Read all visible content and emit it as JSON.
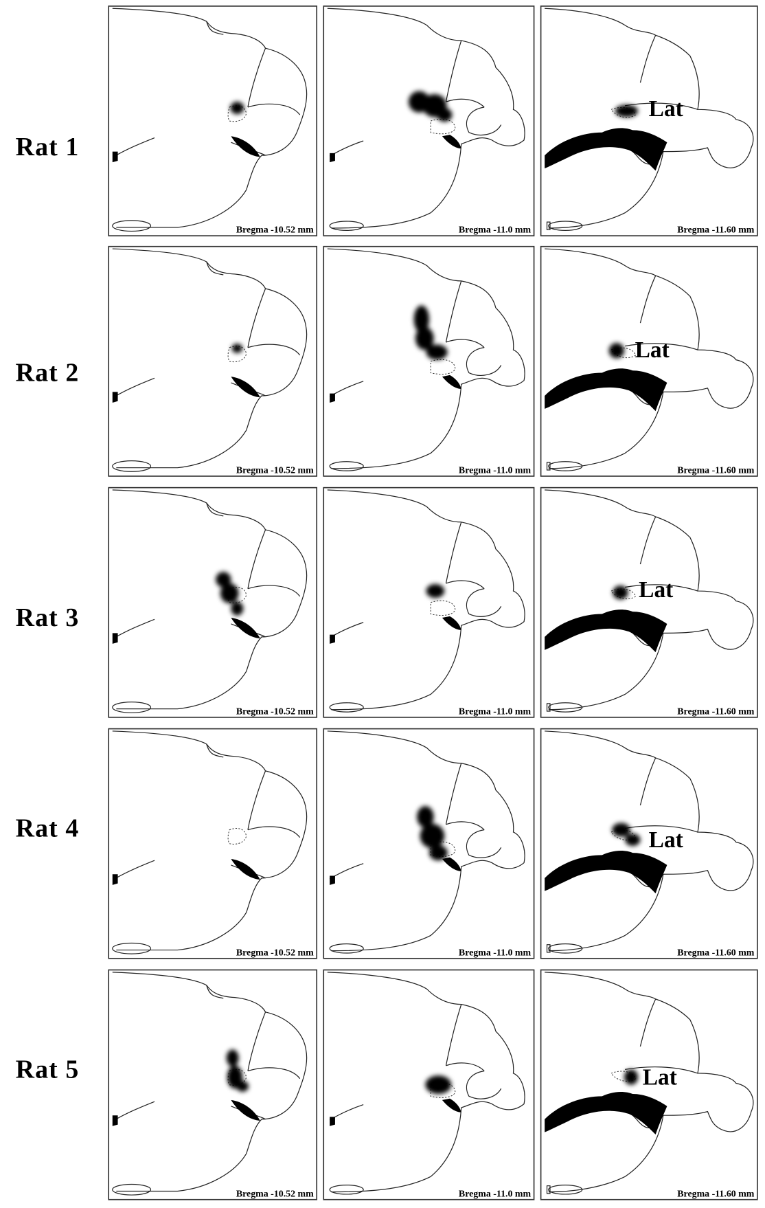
{
  "rows": [
    {
      "label": "Rat 1",
      "panels": [
        {
          "caption": "Bregma -10.52 mm"
        },
        {
          "caption": "Bregma -11.0 mm"
        },
        {
          "caption": "Bregma -11.60 mm",
          "annotation": "Lat"
        }
      ]
    },
    {
      "label": "Rat 2",
      "panels": [
        {
          "caption": "Bregma -10.52 mm"
        },
        {
          "caption": "Bregma -11.0 mm"
        },
        {
          "caption": "Bregma -11.60 mm",
          "annotation": "Lat"
        }
      ]
    },
    {
      "label": "Rat 3",
      "panels": [
        {
          "caption": "Bregma -10.52 mm"
        },
        {
          "caption": "Bregma -11.0 mm"
        },
        {
          "caption": "Bregma -11.60 mm",
          "annotation": "Lat"
        }
      ]
    },
    {
      "label": "Rat 4",
      "panels": [
        {
          "caption": "Bregma -10.52 mm"
        },
        {
          "caption": "Bregma -11.0 mm"
        },
        {
          "caption": "Bregma -11.60 mm",
          "annotation": "Lat"
        }
      ]
    },
    {
      "label": "Rat 5",
      "panels": [
        {
          "caption": "Bregma -10.52 mm"
        },
        {
          "caption": "Bregma -11.0 mm"
        },
        {
          "caption": "Bregma -11.60 mm",
          "annotation": "Lat"
        }
      ]
    }
  ]
}
